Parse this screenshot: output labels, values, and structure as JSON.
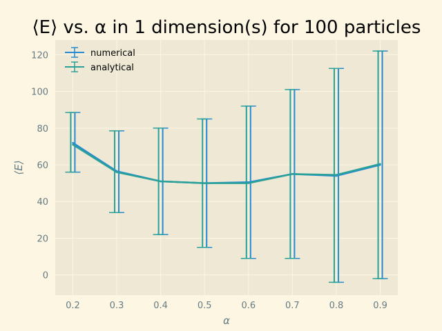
{
  "chart_data": {
    "type": "line",
    "title": "⟨E⟩ vs. α in 1 dimension(s) for 100 particles",
    "xlabel": "α",
    "ylabel": "⟨E⟩",
    "x": [
      0.2,
      0.3,
      0.4,
      0.5,
      0.6,
      0.7,
      0.8,
      0.9
    ],
    "xlim": [
      0.16,
      0.94
    ],
    "ylim": [
      -11,
      128
    ],
    "xticks": [
      "0.2",
      "0.3",
      "0.4",
      "0.5",
      "0.6",
      "0.7",
      "0.8",
      "0.9"
    ],
    "yticks": [
      "0",
      "20",
      "40",
      "60",
      "80",
      "100",
      "120"
    ],
    "grid": true,
    "legend_position": "top-left",
    "series": [
      {
        "name": "numerical",
        "color": "#268bd2",
        "values": [
          72.0,
          56.5,
          51.0,
          50.0,
          50.5,
          55.0,
          54.0,
          60.0
        ],
        "err_low": [
          56.0,
          34.0,
          22.0,
          15.0,
          9.0,
          9.0,
          -4.0,
          -2.0
        ],
        "err_high": [
          88.5,
          78.5,
          80.0,
          85.0,
          92.0,
          101.0,
          112.5,
          122.0
        ]
      },
      {
        "name": "analytical",
        "color": "#2aa198",
        "values": [
          71.0,
          56.0,
          51.0,
          50.0,
          50.0,
          55.0,
          54.5,
          60.5
        ],
        "err_low": [
          56.0,
          34.0,
          22.0,
          15.0,
          9.0,
          9.0,
          -4.0,
          -2.0
        ],
        "err_high": [
          88.5,
          78.5,
          80.0,
          85.0,
          92.0,
          101.0,
          112.5,
          122.0
        ]
      }
    ]
  }
}
